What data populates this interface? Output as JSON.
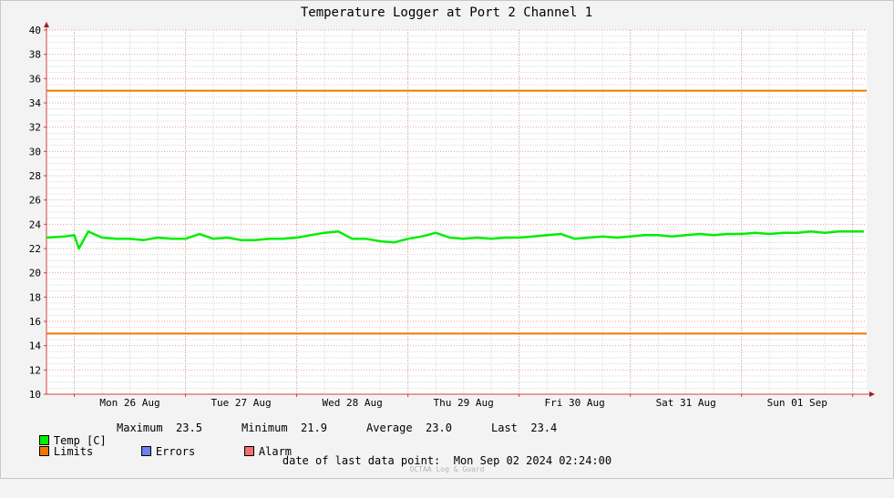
{
  "chart_data": {
    "type": "line",
    "title": "Temperature Logger at Port 2 Channel 1",
    "ylim": [
      10,
      40
    ],
    "yticks": [
      10,
      12,
      14,
      16,
      18,
      20,
      22,
      24,
      26,
      28,
      30,
      32,
      34,
      36,
      38,
      40
    ],
    "xlim_days": [
      "2024-08-25T18:00",
      "2024-09-02T03:00"
    ],
    "xticks": [
      "Mon 26 Aug",
      "Tue 27 Aug",
      "Wed 28 Aug",
      "Thu 29 Aug",
      "Fri 30 Aug",
      "Sat 31 Aug",
      "Sun 01 Sep"
    ],
    "grid": true,
    "series": [
      {
        "name": "Temp [C]",
        "color": "#00ee00",
        "x": [
          "2024-08-25T18:00",
          "2024-08-25T22:00",
          "2024-08-26T00:00",
          "2024-08-26T01:00",
          "2024-08-26T03:00",
          "2024-08-26T06:00",
          "2024-08-26T09:00",
          "2024-08-26T12:00",
          "2024-08-26T15:00",
          "2024-08-26T18:00",
          "2024-08-26T21:00",
          "2024-08-27T00:00",
          "2024-08-27T03:00",
          "2024-08-27T06:00",
          "2024-08-27T09:00",
          "2024-08-27T12:00",
          "2024-08-27T15:00",
          "2024-08-27T18:00",
          "2024-08-27T21:00",
          "2024-08-28T00:00",
          "2024-08-28T03:00",
          "2024-08-28T06:00",
          "2024-08-28T09:00",
          "2024-08-28T12:00",
          "2024-08-28T15:00",
          "2024-08-28T18:00",
          "2024-08-28T21:00",
          "2024-08-29T00:00",
          "2024-08-29T03:00",
          "2024-08-29T06:00",
          "2024-08-29T09:00",
          "2024-08-29T12:00",
          "2024-08-29T15:00",
          "2024-08-29T18:00",
          "2024-08-29T21:00",
          "2024-08-30T00:00",
          "2024-08-30T03:00",
          "2024-08-30T06:00",
          "2024-08-30T09:00",
          "2024-08-30T12:00",
          "2024-08-30T15:00",
          "2024-08-30T18:00",
          "2024-08-30T21:00",
          "2024-08-31T00:00",
          "2024-08-31T03:00",
          "2024-08-31T06:00",
          "2024-08-31T09:00",
          "2024-08-31T12:00",
          "2024-08-31T15:00",
          "2024-08-31T18:00",
          "2024-08-31T21:00",
          "2024-09-01T00:00",
          "2024-09-01T03:00",
          "2024-09-01T06:00",
          "2024-09-01T09:00",
          "2024-09-01T12:00",
          "2024-09-01T15:00",
          "2024-09-01T18:00",
          "2024-09-01T21:00",
          "2024-09-02T00:00",
          "2024-09-02T02:24"
        ],
        "values": [
          22.9,
          23.0,
          23.1,
          22.0,
          23.4,
          22.9,
          22.8,
          22.8,
          22.7,
          22.9,
          22.8,
          22.8,
          23.2,
          22.8,
          22.9,
          22.7,
          22.7,
          22.8,
          22.8,
          22.9,
          23.1,
          23.3,
          23.4,
          22.8,
          22.8,
          22.6,
          22.5,
          22.8,
          23.0,
          23.3,
          22.9,
          22.8,
          22.9,
          22.8,
          22.9,
          22.9,
          23.0,
          23.1,
          23.2,
          22.8,
          22.9,
          23.0,
          22.9,
          23.0,
          23.1,
          23.1,
          23.0,
          23.1,
          23.2,
          23.1,
          23.2,
          23.2,
          23.3,
          23.2,
          23.3,
          23.3,
          23.4,
          23.3,
          23.4,
          23.4,
          23.4
        ]
      },
      {
        "name": "Limits",
        "color": "#f07800",
        "values": [
          35,
          15
        ]
      },
      {
        "name": "Errors",
        "color": "#7080f0"
      },
      {
        "name": "Alarm",
        "color": "#f07070"
      }
    ]
  },
  "legend": {
    "temp_label": "Temp [C]",
    "max_label": "Maximum",
    "max_value": "23.5",
    "min_label": "Minimum",
    "min_value": "21.9",
    "avg_label": "Average",
    "avg_value": "23.0",
    "last_label": "Last",
    "last_value": "23.4",
    "limits_label": "Limits",
    "errors_label": "Errors",
    "alarm_label": "Alarm"
  },
  "footer": {
    "text": "date of last data point:  Mon Sep 02 2024 02:24:00",
    "credit": "OCTAA Log & Guard"
  }
}
